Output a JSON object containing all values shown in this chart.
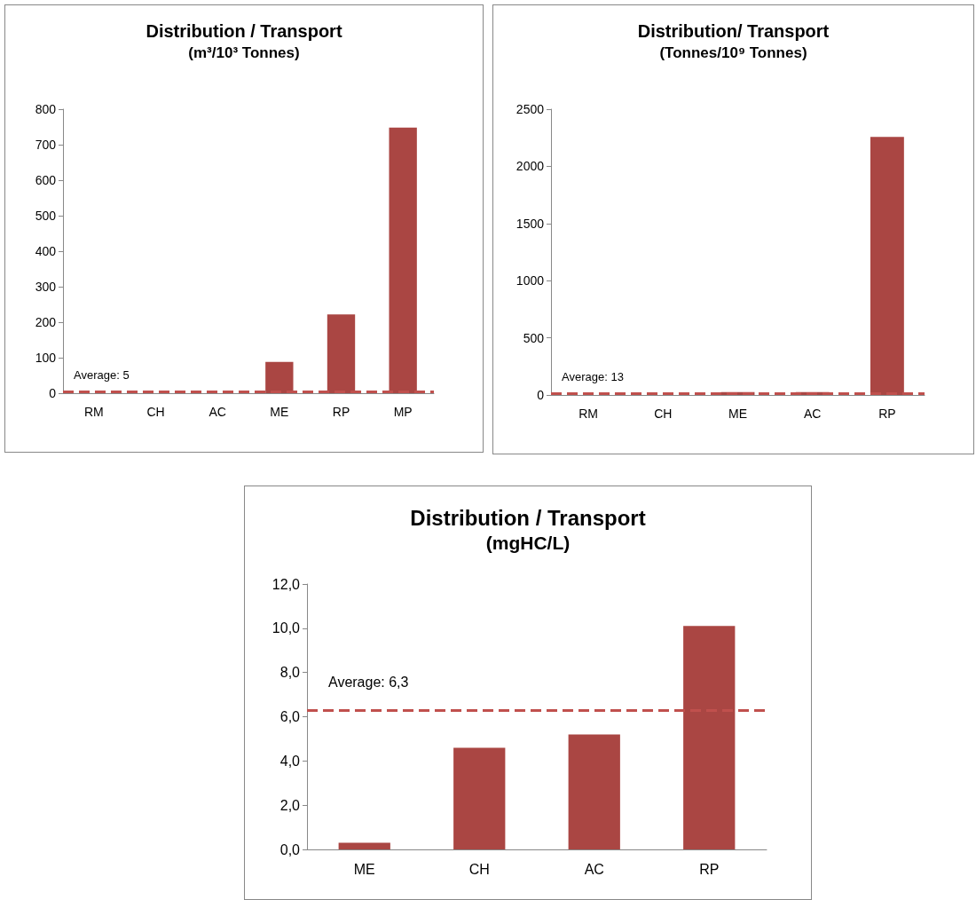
{
  "chart_data": [
    {
      "type": "bar",
      "title": "Distribution / Transport",
      "subtitle": "(m³/10³ Tonnes)",
      "categories": [
        "RM",
        "CH",
        "AC",
        "ME",
        "RP",
        "MP"
      ],
      "values": [
        null,
        null,
        null,
        88,
        222,
        748
      ],
      "color": "#aa4643",
      "ylim": [
        0,
        800
      ],
      "yticks": [
        0,
        100,
        200,
        300,
        400,
        500,
        600,
        700,
        800
      ],
      "grid": false,
      "ref_lines": [
        {
          "axis": "y",
          "value": 5,
          "label": "Average: 5",
          "color": "#c0504d",
          "line_style": "dashed"
        }
      ]
    },
    {
      "type": "bar",
      "title": "Distribution/ Transport",
      "subtitle": "(Tonnes/10⁹ Tonnes)",
      "categories": [
        "RM",
        "CH",
        "ME",
        "AC",
        "RP"
      ],
      "values": [
        null,
        null,
        25,
        25,
        2258
      ],
      "color": "#aa4643",
      "ylim": [
        0,
        2500
      ],
      "yticks": [
        0,
        500,
        1000,
        1500,
        2000,
        2500
      ],
      "grid": false,
      "ref_lines": [
        {
          "axis": "y",
          "value": 13,
          "label": "Average: 13",
          "color": "#c0504d",
          "line_style": "dashed"
        }
      ]
    },
    {
      "type": "bar",
      "title": "Distribution / Transport",
      "subtitle": "(mgHC/L)",
      "categories": [
        "ME",
        "CH",
        "AC",
        "RP"
      ],
      "values": [
        0.3,
        4.6,
        5.2,
        10.1
      ],
      "color": "#aa4643",
      "ylim": [
        0,
        12
      ],
      "yticks": [
        {
          "value": 0,
          "label": "0,0"
        },
        {
          "value": 2,
          "label": "2,0"
        },
        {
          "value": 4,
          "label": "4,0"
        },
        {
          "value": 6,
          "label": "6,0"
        },
        {
          "value": 8,
          "label": "8,0"
        },
        {
          "value": 10,
          "label": "10,0"
        },
        {
          "value": 12,
          "label": "12,0"
        }
      ],
      "grid": false,
      "ref_lines": [
        {
          "axis": "y",
          "value": 6.3,
          "label": "Average: 6,3",
          "color": "#c0504d",
          "line_style": "dashed"
        }
      ]
    }
  ]
}
